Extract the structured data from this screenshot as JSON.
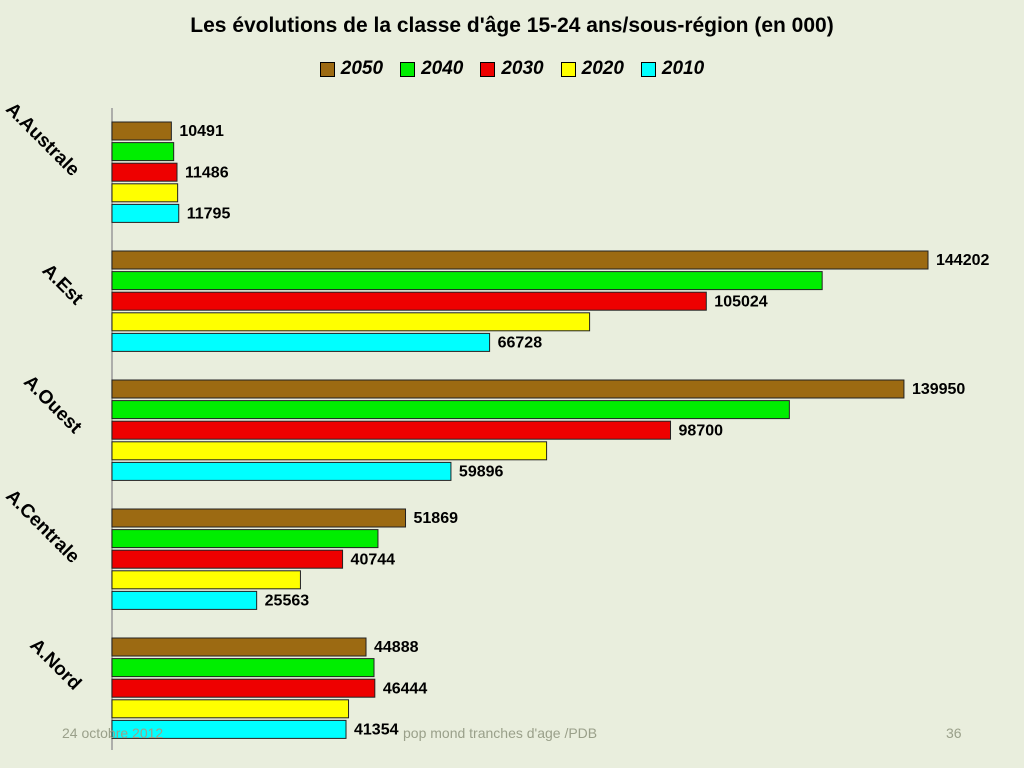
{
  "chart_data": {
    "type": "bar",
    "orientation": "horizontal",
    "title": "Les évolutions de la classe d'âge 15-24 ans/sous-région (en 000)",
    "categories": [
      "A.Australe",
      "A.Est",
      "A.Ouest",
      "A.Centrale",
      "A.Nord"
    ],
    "series": [
      {
        "name": "2050",
        "color": "#9c6a12",
        "values": [
          10491,
          144202,
          139950,
          51869,
          44888
        ]
      },
      {
        "name": "2040",
        "color": "#00ee00",
        "values": [
          10900,
          125500,
          119700,
          47000,
          46300
        ]
      },
      {
        "name": "2030",
        "color": "#ee0000",
        "values": [
          11486,
          105024,
          98700,
          40744,
          46444
        ]
      },
      {
        "name": "2020",
        "color": "#ffff00",
        "values": [
          11600,
          84400,
          76800,
          33300,
          41800
        ]
      },
      {
        "name": "2010",
        "color": "#00ffff",
        "values": [
          11795,
          66728,
          59896,
          25563,
          41354
        ]
      }
    ],
    "data_labels": [
      [
        "10491",
        "",
        "11486",
        "",
        "11795"
      ],
      [
        "144202",
        "",
        "105024",
        "",
        "66728"
      ],
      [
        "139950",
        "",
        "98700",
        "",
        "59896"
      ],
      [
        "51869",
        "",
        "40744",
        "",
        "25563"
      ],
      [
        "44888",
        "",
        "46444",
        "",
        "41354"
      ]
    ],
    "legend_position": "top",
    "grid": false
  },
  "footer": {
    "date": "24 octobre 2012",
    "center": "pop mond  tranches d'age /PDB",
    "page": "36"
  }
}
